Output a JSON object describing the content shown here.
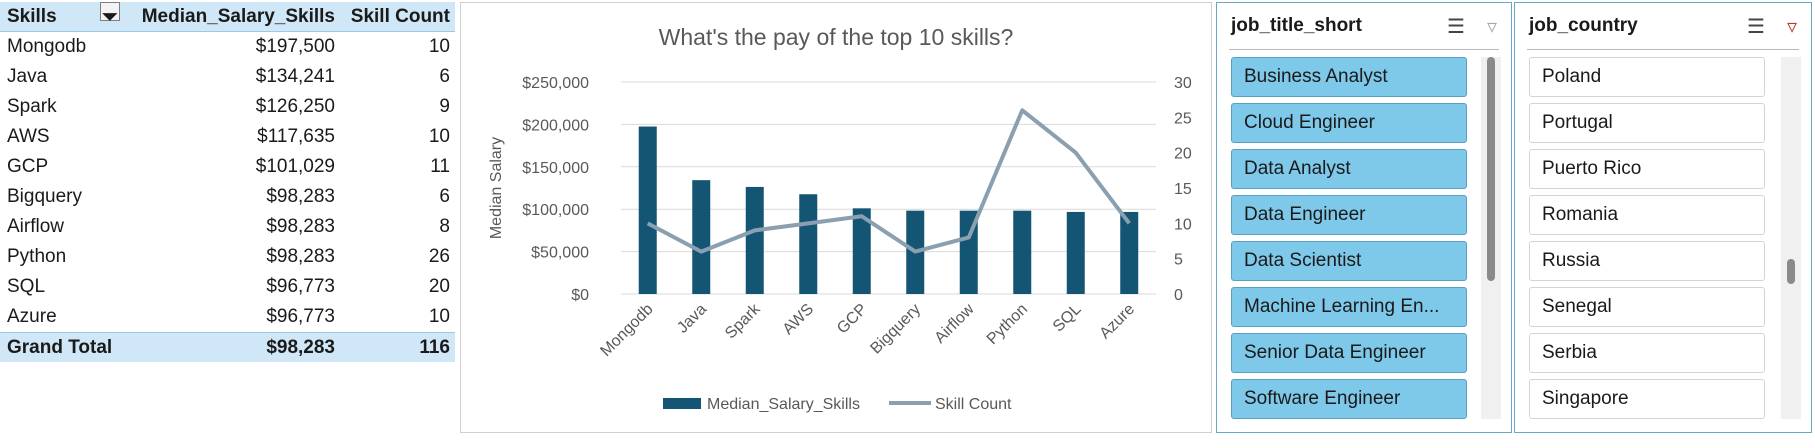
{
  "pivot": {
    "headers": {
      "skills": "Skills",
      "salary": "Median_Salary_Skills",
      "count": "Skill Count"
    },
    "rows": [
      {
        "skill": "Mongodb",
        "salary": "$197,500",
        "count": "10"
      },
      {
        "skill": "Java",
        "salary": "$134,241",
        "count": "6"
      },
      {
        "skill": "Spark",
        "salary": "$126,250",
        "count": "9"
      },
      {
        "skill": "AWS",
        "salary": "$117,635",
        "count": "10"
      },
      {
        "skill": "GCP",
        "salary": "$101,029",
        "count": "11"
      },
      {
        "skill": "Bigquery",
        "salary": "$98,283",
        "count": "6"
      },
      {
        "skill": "Airflow",
        "salary": "$98,283",
        "count": "8"
      },
      {
        "skill": "Python",
        "salary": "$98,283",
        "count": "26"
      },
      {
        "skill": "SQL",
        "salary": "$96,773",
        "count": "20"
      },
      {
        "skill": "Azure",
        "salary": "$96,773",
        "count": "10"
      }
    ],
    "total": {
      "label": "Grand Total",
      "salary": "$98,283",
      "count": "116"
    }
  },
  "chart_data": {
    "type": "bar",
    "title": "What's the pay of the top 10 skills?",
    "ylabel": "Median Salary",
    "categories": [
      "Mongodb",
      "Java",
      "Spark",
      "AWS",
      "GCP",
      "Bigquery",
      "Airflow",
      "Python",
      "SQL",
      "Azure"
    ],
    "ylim": [
      0,
      250000
    ],
    "y_ticks": [
      "$0",
      "$50,000",
      "$100,000",
      "$150,000",
      "$200,000",
      "$250,000"
    ],
    "y2lim": [
      0,
      30
    ],
    "y2_ticks": [
      "0",
      "5",
      "10",
      "15",
      "20",
      "25",
      "30"
    ],
    "grid": true,
    "legend_position": "bottom",
    "series": [
      {
        "name": "Median_Salary_Skills",
        "kind": "bar",
        "axis": "primary",
        "color": "#145574",
        "values": [
          197500,
          134241,
          126250,
          117635,
          101029,
          98283,
          98283,
          98283,
          96773,
          96773
        ]
      },
      {
        "name": "Skill Count",
        "kind": "line",
        "axis": "secondary",
        "color": "#8a9fb0",
        "values": [
          10,
          6,
          9,
          10,
          11,
          6,
          8,
          26,
          20,
          10
        ]
      }
    ]
  },
  "slicers": [
    {
      "title": "job_title_short",
      "items": [
        {
          "label": "Business Analyst",
          "selected": true
        },
        {
          "label": "Cloud Engineer",
          "selected": true
        },
        {
          "label": "Data Analyst",
          "selected": true
        },
        {
          "label": "Data Engineer",
          "selected": true
        },
        {
          "label": "Data Scientist",
          "selected": true
        },
        {
          "label": "Machine Learning En...",
          "selected": true
        },
        {
          "label": "Senior Data Engineer",
          "selected": true
        },
        {
          "label": "Software Engineer",
          "selected": true
        }
      ],
      "scroll_position": 0.0,
      "scroll_visible_fraction": 0.62
    },
    {
      "title": "job_country",
      "items": [
        {
          "label": "Poland",
          "selected": false
        },
        {
          "label": "Portugal",
          "selected": false
        },
        {
          "label": "Puerto Rico",
          "selected": false
        },
        {
          "label": "Romania",
          "selected": false
        },
        {
          "label": "Russia",
          "selected": false
        },
        {
          "label": "Senegal",
          "selected": false
        },
        {
          "label": "Serbia",
          "selected": false
        },
        {
          "label": "Singapore",
          "selected": false
        }
      ],
      "scroll_position": 0.6,
      "scroll_visible_fraction": 0.07
    }
  ],
  "colors": {
    "selected_item": "#7ec8ea",
    "header_band": "#cfe7f6",
    "bar": "#145574",
    "line": "#8a9fb0"
  },
  "icons": {
    "multi_select": "multi-select-icon",
    "clear_filter": "clear-filter-icon",
    "sort_filter": "sort-filter-icon"
  }
}
